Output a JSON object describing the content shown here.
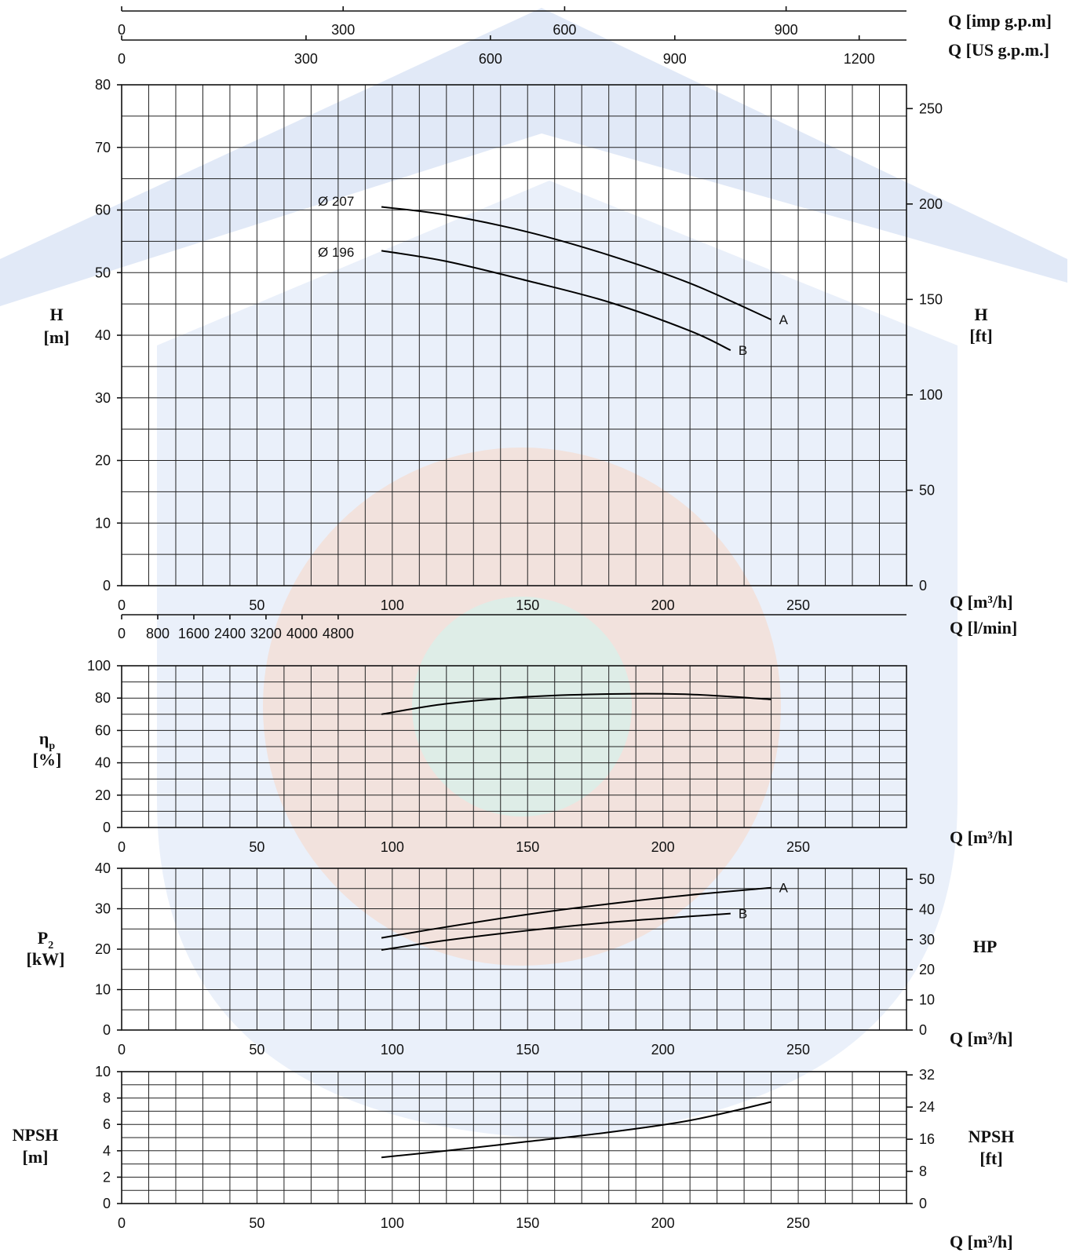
{
  "colors": {
    "curve": "#000000",
    "grid": "#222222",
    "watermark_blue": "#d9e3f5",
    "watermark_warm": "#f7d7c4"
  },
  "chart_data": [
    {
      "type": "line",
      "id": "head",
      "xlabel": "Q [m³/h]",
      "xlim": [
        0,
        290
      ],
      "x_ticks": [
        "0",
        "50",
        "100",
        "150",
        "200",
        "250"
      ],
      "ylabel_left": "H [m]",
      "ylim": [
        0,
        80
      ],
      "y_ticks": [
        "0",
        "10",
        "20",
        "30",
        "40",
        "50",
        "60",
        "70",
        "80"
      ],
      "ylabel_right": "H [ft]",
      "y2_ticks": [
        "0",
        "50",
        "100",
        "150",
        "200",
        "250"
      ],
      "top_axes": [
        {
          "label": "Q [imp g.p.m]",
          "ticks": [
            "0",
            "300",
            "600",
            "900"
          ]
        },
        {
          "label": "Q [US g.p.m.]",
          "ticks": [
            "0",
            "300",
            "600",
            "900",
            "1200"
          ]
        }
      ],
      "bottom_axis2": {
        "label": "Q [l/min]",
        "ticks": [
          "0",
          "800",
          "1600",
          "2400",
          "3200",
          "4000",
          "4800"
        ]
      },
      "grid": true,
      "annotations": [
        "Ø 207",
        "Ø 196"
      ],
      "series": [
        {
          "name": "A",
          "x": [
            96,
            120,
            150,
            180,
            210,
            240
          ],
          "y": [
            60.5,
            59.2,
            56.5,
            52.8,
            48.3,
            42.5
          ]
        },
        {
          "name": "B",
          "x": [
            96,
            120,
            150,
            180,
            210,
            225
          ],
          "y": [
            53.5,
            51.8,
            48.7,
            45.3,
            40.7,
            37.6
          ]
        }
      ]
    },
    {
      "type": "line",
      "id": "efficiency",
      "xlabel": "Q [m³/h]",
      "xlim": [
        0,
        290
      ],
      "x_ticks": [
        "0",
        "50",
        "100",
        "150",
        "200",
        "250"
      ],
      "ylabel": "ηp [%]",
      "ylim": [
        0,
        100
      ],
      "y_ticks": [
        "0",
        "20",
        "40",
        "60",
        "80",
        "100"
      ],
      "grid": true,
      "series": [
        {
          "x": [
            96,
            120,
            150,
            180,
            210,
            240
          ],
          "y": [
            70,
            76.5,
            80.8,
            82.5,
            82.3,
            79.2
          ]
        }
      ]
    },
    {
      "type": "line",
      "id": "power",
      "xlabel": "Q [m³/h]",
      "xlim": [
        0,
        290
      ],
      "x_ticks": [
        "0",
        "50",
        "100",
        "150",
        "200",
        "250"
      ],
      "ylabel_left": "P2 [kW]",
      "ylim": [
        0,
        40
      ],
      "y_ticks": [
        "0",
        "10",
        "20",
        "30",
        "40"
      ],
      "ylabel_right": "HP",
      "y2_ticks": [
        "0",
        "10",
        "20",
        "30",
        "40",
        "50"
      ],
      "grid": true,
      "series": [
        {
          "name": "A",
          "x": [
            96,
            120,
            150,
            180,
            210,
            240
          ],
          "y": [
            22.8,
            25.5,
            28.6,
            31.2,
            33.4,
            35.2
          ]
        },
        {
          "name": "B",
          "x": [
            96,
            120,
            150,
            180,
            210,
            225
          ],
          "y": [
            19.8,
            22.2,
            24.6,
            26.6,
            28.1,
            28.8
          ]
        }
      ]
    },
    {
      "type": "line",
      "id": "npsh",
      "xlabel": "Q [m³/h]",
      "xlim": [
        0,
        290
      ],
      "x_ticks": [
        "0",
        "50",
        "100",
        "150",
        "200",
        "250"
      ],
      "ylabel_left": "NPSH [m]",
      "ylim": [
        0,
        10
      ],
      "y_ticks": [
        "0",
        "2",
        "4",
        "6",
        "8",
        "10"
      ],
      "ylabel_right": "NPSH [ft]",
      "y2_ticks": [
        "0",
        "8",
        "16",
        "24",
        "32"
      ],
      "grid": true,
      "series": [
        {
          "x": [
            96,
            120,
            150,
            180,
            210,
            240
          ],
          "y": [
            3.5,
            4.0,
            4.7,
            5.4,
            6.3,
            7.7
          ]
        }
      ]
    }
  ]
}
